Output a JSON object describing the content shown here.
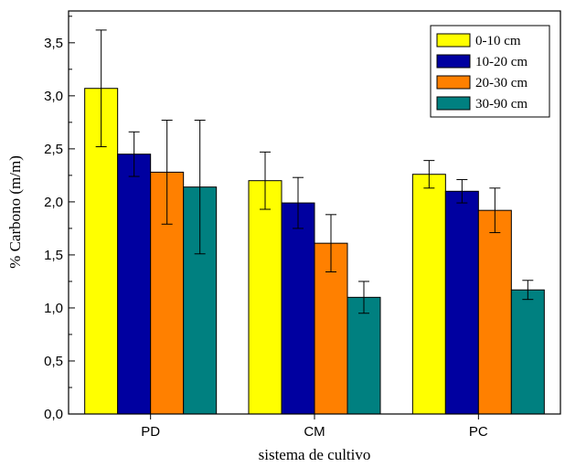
{
  "chart_data": {
    "type": "bar",
    "title": "",
    "xlabel": "sistema de cultivo",
    "ylabel": "% Carbono (m/m)",
    "categories": [
      "PD",
      "CM",
      "PC"
    ],
    "ylim": [
      0,
      3.8
    ],
    "yticks": [
      "0,0",
      "0,5",
      "1,0",
      "1,5",
      "2,0",
      "2,5",
      "3,0",
      "3,5"
    ],
    "legend_position": "top-right",
    "grid": false,
    "series": [
      {
        "name": "0-10 cm",
        "color": "#ffff00",
        "values": [
          3.07,
          2.2,
          2.26
        ],
        "errors": [
          0.55,
          0.27,
          0.13
        ]
      },
      {
        "name": "10-20 cm",
        "color": "#0000a0",
        "values": [
          2.45,
          1.99,
          2.1
        ],
        "errors": [
          0.21,
          0.24,
          0.11
        ]
      },
      {
        "name": "20-30 cm",
        "color": "#ff8000",
        "values": [
          2.28,
          1.61,
          1.92
        ],
        "errors": [
          0.49,
          0.27,
          0.21
        ]
      },
      {
        "name": "30-90 cm",
        "color": "#008080",
        "values": [
          2.14,
          1.1,
          1.17
        ],
        "errors": [
          0.63,
          0.15,
          0.09
        ]
      }
    ]
  }
}
